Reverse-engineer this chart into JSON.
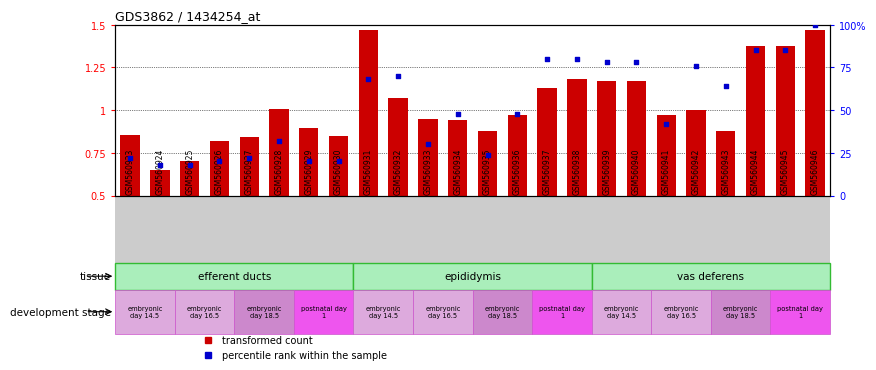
{
  "title": "GDS3862 / 1434254_at",
  "samples": [
    "GSM560923",
    "GSM560924",
    "GSM560925",
    "GSM560926",
    "GSM560927",
    "GSM560928",
    "GSM560929",
    "GSM560930",
    "GSM560931",
    "GSM560932",
    "GSM560933",
    "GSM560934",
    "GSM560935",
    "GSM560936",
    "GSM560937",
    "GSM560938",
    "GSM560939",
    "GSM560940",
    "GSM560941",
    "GSM560942",
    "GSM560943",
    "GSM560944",
    "GSM560945",
    "GSM560946"
  ],
  "red_values": [
    0.855,
    0.65,
    0.7,
    0.82,
    0.84,
    1.005,
    0.895,
    0.85,
    1.47,
    1.07,
    0.95,
    0.94,
    0.875,
    0.972,
    1.13,
    1.18,
    1.17,
    1.17,
    0.97,
    1.0,
    0.88,
    1.375,
    1.375,
    1.47
  ],
  "blue_percentile": [
    22,
    18,
    18,
    20,
    22,
    32,
    20,
    20,
    68,
    70,
    30,
    48,
    24,
    48,
    80,
    80,
    78,
    78,
    42,
    76,
    64,
    85,
    85,
    100
  ],
  "ylim_left": [
    0.5,
    1.5
  ],
  "ylim_right": [
    0,
    100
  ],
  "yticks_left": [
    0.5,
    0.75,
    1.0,
    1.25,
    1.5
  ],
  "ytick_labels_left": [
    "0.5",
    "0.75",
    "1",
    "1.25",
    "1.5"
  ],
  "yticks_right": [
    0,
    25,
    50,
    75,
    100
  ],
  "ytick_labels_right": [
    "0",
    "25",
    "50",
    "75",
    "100%"
  ],
  "bar_color": "#cc0000",
  "blue_color": "#0000cc",
  "tissue_groups": [
    {
      "label": "efferent ducts",
      "start": 0,
      "end": 7,
      "color": "#aaeebb"
    },
    {
      "label": "epididymis",
      "start": 8,
      "end": 15,
      "color": "#aaeebb"
    },
    {
      "label": "vas deferens",
      "start": 16,
      "end": 23,
      "color": "#aaeebb"
    }
  ],
  "dev_stage_groups": [
    {
      "label": "embryonic\nday 14.5",
      "start": 0,
      "end": 1,
      "color": "#ddaadd"
    },
    {
      "label": "embryonic\nday 16.5",
      "start": 2,
      "end": 3,
      "color": "#ddaadd"
    },
    {
      "label": "embryonic\nday 18.5",
      "start": 4,
      "end": 5,
      "color": "#cc88cc"
    },
    {
      "label": "postnatal day\n1",
      "start": 6,
      "end": 7,
      "color": "#ee55ee"
    },
    {
      "label": "embryonic\nday 14.5",
      "start": 8,
      "end": 9,
      "color": "#ddaadd"
    },
    {
      "label": "embryonic\nday 16.5",
      "start": 10,
      "end": 11,
      "color": "#ddaadd"
    },
    {
      "label": "embryonic\nday 18.5",
      "start": 12,
      "end": 13,
      "color": "#cc88cc"
    },
    {
      "label": "postnatal day\n1",
      "start": 14,
      "end": 15,
      "color": "#ee55ee"
    },
    {
      "label": "embryonic\nday 14.5",
      "start": 16,
      "end": 17,
      "color": "#ddaadd"
    },
    {
      "label": "embryonic\nday 16.5",
      "start": 18,
      "end": 19,
      "color": "#ddaadd"
    },
    {
      "label": "embryonic\nday 18.5",
      "start": 20,
      "end": 21,
      "color": "#cc88cc"
    },
    {
      "label": "postnatal day\n1",
      "start": 22,
      "end": 23,
      "color": "#ee55ee"
    }
  ],
  "xtick_bg": "#cccccc",
  "tissue_border": "#33bb33",
  "dev_border": "#cc55cc"
}
